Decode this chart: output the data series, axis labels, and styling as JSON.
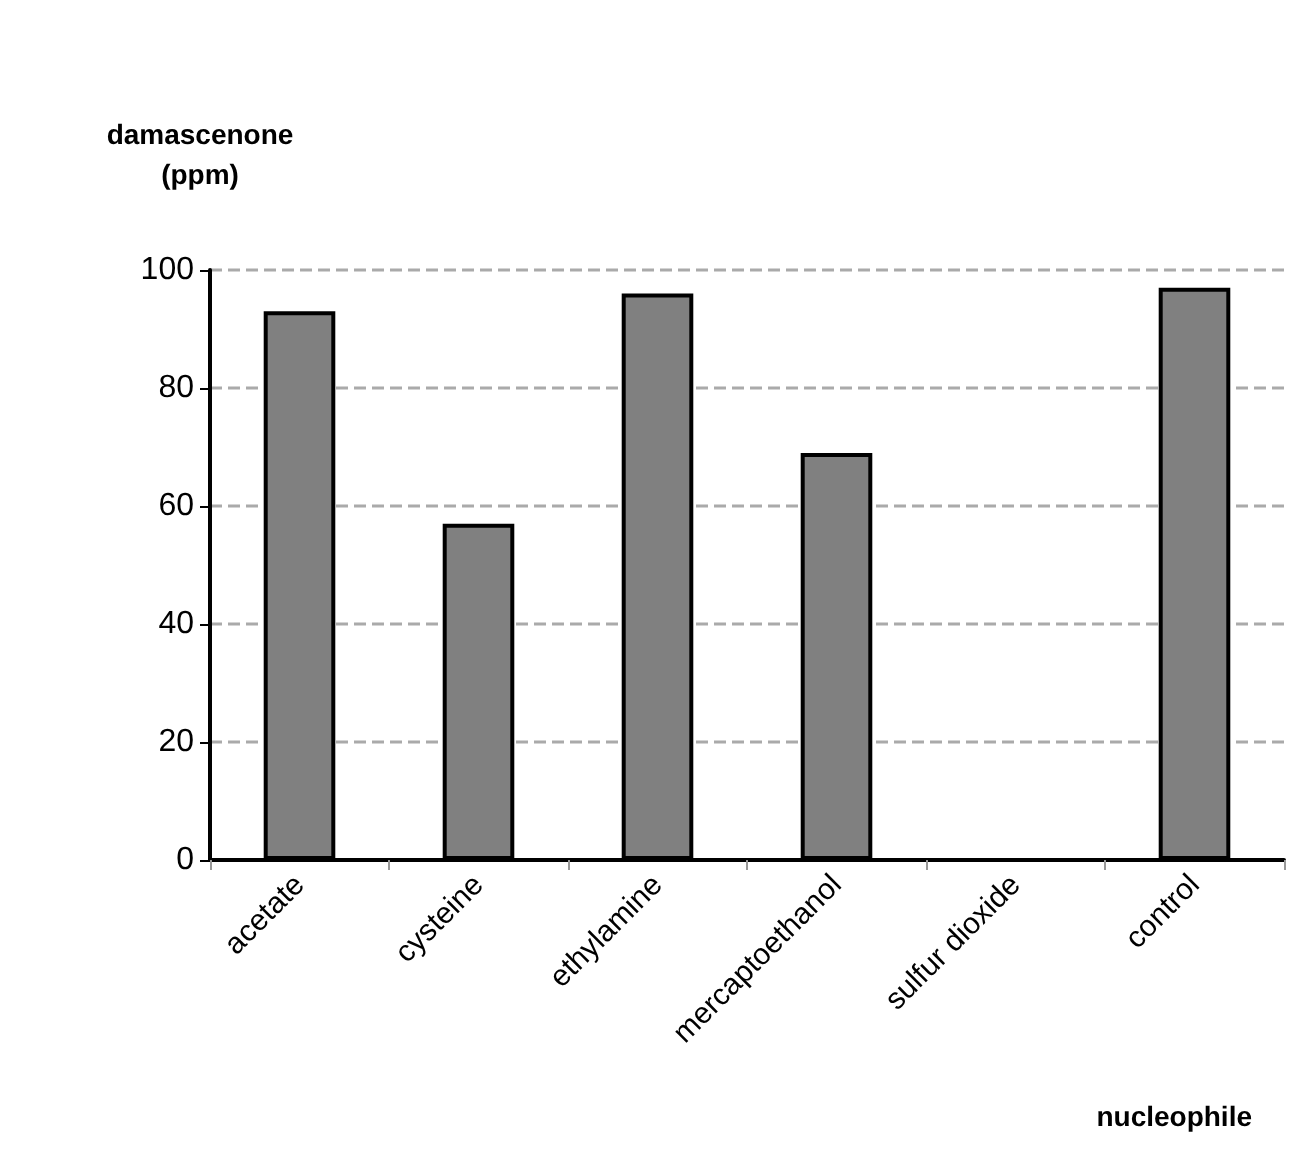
{
  "chart_data": {
    "type": "bar",
    "xlabel": "nucleophile",
    "ylabel": "damascenone\n(ppm)",
    "categories": [
      "acetate",
      "cysteine",
      "ethylamine",
      "mercaptoethanol",
      "sulfur dioxide",
      "control"
    ],
    "values": [
      93,
      57,
      96,
      69,
      null,
      97
    ],
    "color": "#808080",
    "ylim": [
      0,
      100
    ],
    "yticks": [
      0,
      20,
      40,
      60,
      80,
      100
    ],
    "grid": "y"
  }
}
